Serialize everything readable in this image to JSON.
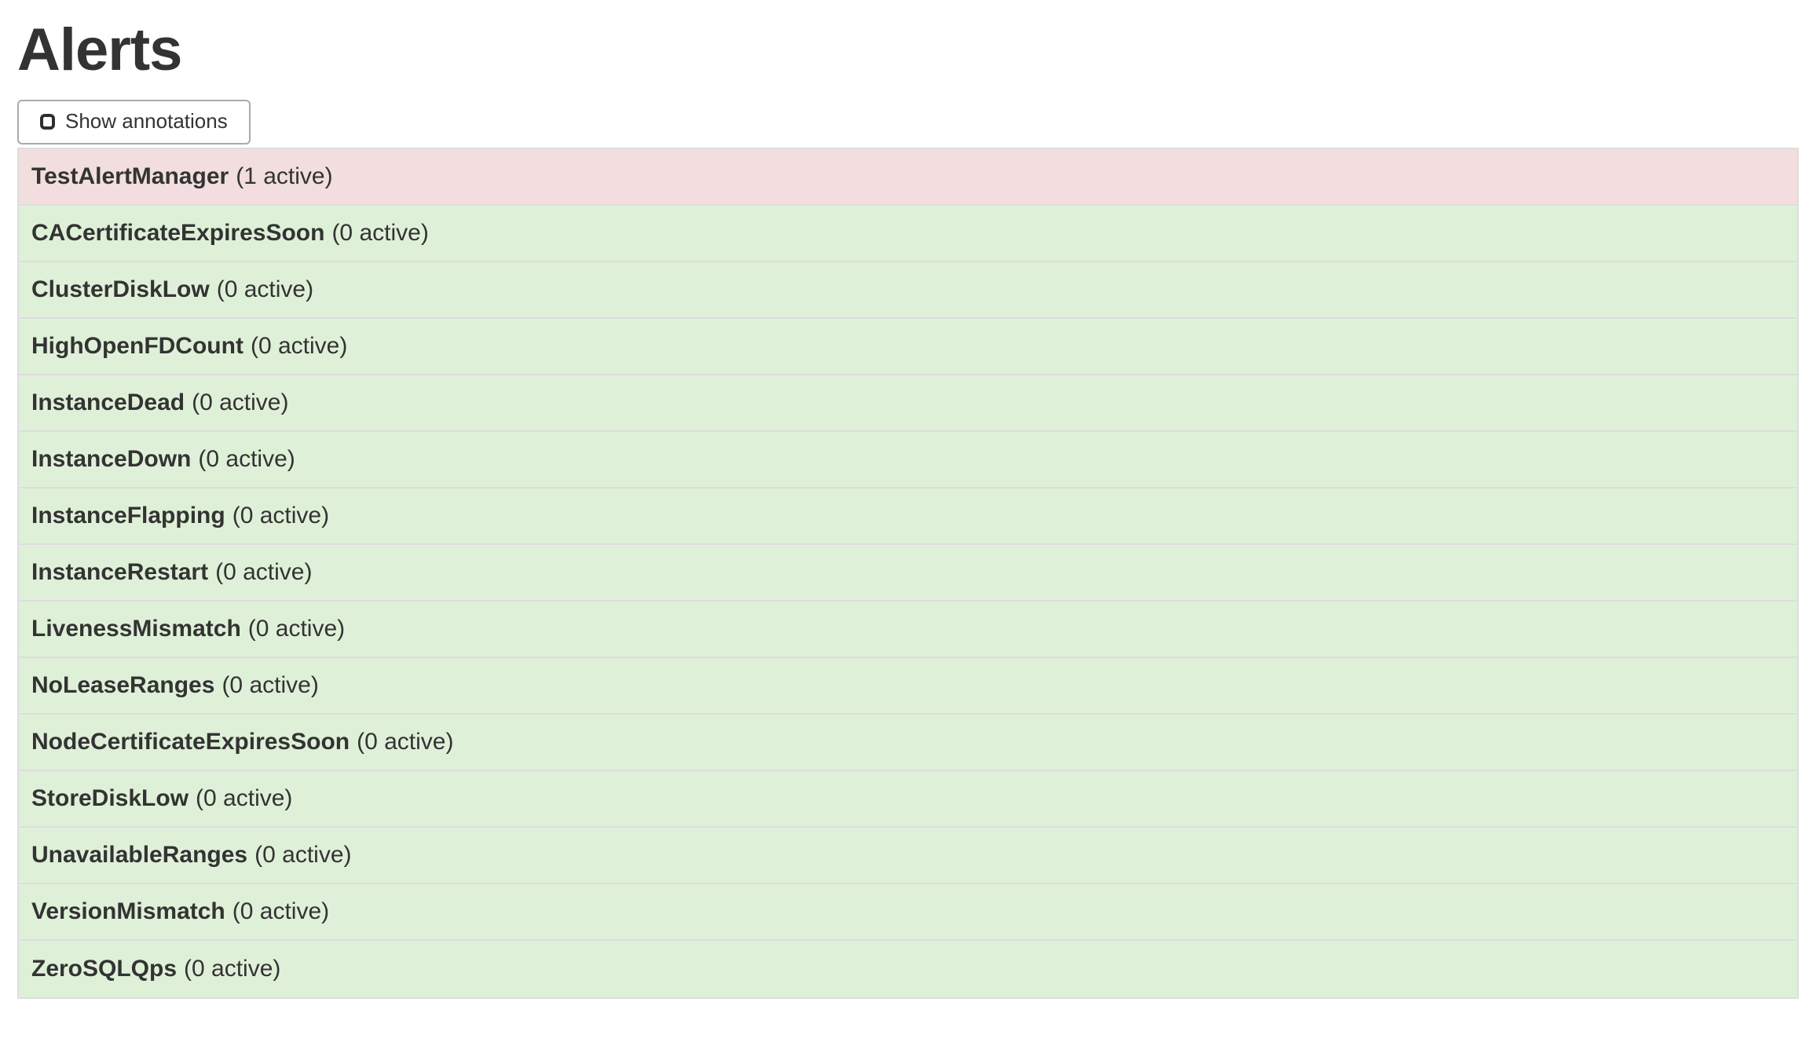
{
  "page": {
    "title": "Alerts"
  },
  "toolbar": {
    "show_annotations": {
      "label": "Show annotations",
      "checked": false
    }
  },
  "alerts": {
    "rows": [
      {
        "name": "TestAlertManager",
        "count_label": "(1 active)",
        "state": "firing"
      },
      {
        "name": "CACertificateExpiresSoon",
        "count_label": "(0 active)",
        "state": "inactive"
      },
      {
        "name": "ClusterDiskLow",
        "count_label": "(0 active)",
        "state": "inactive"
      },
      {
        "name": "HighOpenFDCount",
        "count_label": "(0 active)",
        "state": "inactive"
      },
      {
        "name": "InstanceDead",
        "count_label": "(0 active)",
        "state": "inactive"
      },
      {
        "name": "InstanceDown",
        "count_label": "(0 active)",
        "state": "inactive"
      },
      {
        "name": "InstanceFlapping",
        "count_label": "(0 active)",
        "state": "inactive"
      },
      {
        "name": "InstanceRestart",
        "count_label": "(0 active)",
        "state": "inactive"
      },
      {
        "name": "LivenessMismatch",
        "count_label": "(0 active)",
        "state": "inactive"
      },
      {
        "name": "NoLeaseRanges",
        "count_label": "(0 active)",
        "state": "inactive"
      },
      {
        "name": "NodeCertificateExpiresSoon",
        "count_label": "(0 active)",
        "state": "inactive"
      },
      {
        "name": "StoreDiskLow",
        "count_label": "(0 active)",
        "state": "inactive"
      },
      {
        "name": "UnavailableRanges",
        "count_label": "(0 active)",
        "state": "inactive"
      },
      {
        "name": "VersionMismatch",
        "count_label": "(0 active)",
        "state": "inactive"
      },
      {
        "name": "ZeroSQLQps",
        "count_label": "(0 active)",
        "state": "inactive"
      }
    ]
  },
  "colors": {
    "firing_bg": "#f2dede",
    "inactive_bg": "#dff0d8",
    "row_border": "#dddddd",
    "text": "#333333",
    "button_border": "#aaaaaa"
  }
}
